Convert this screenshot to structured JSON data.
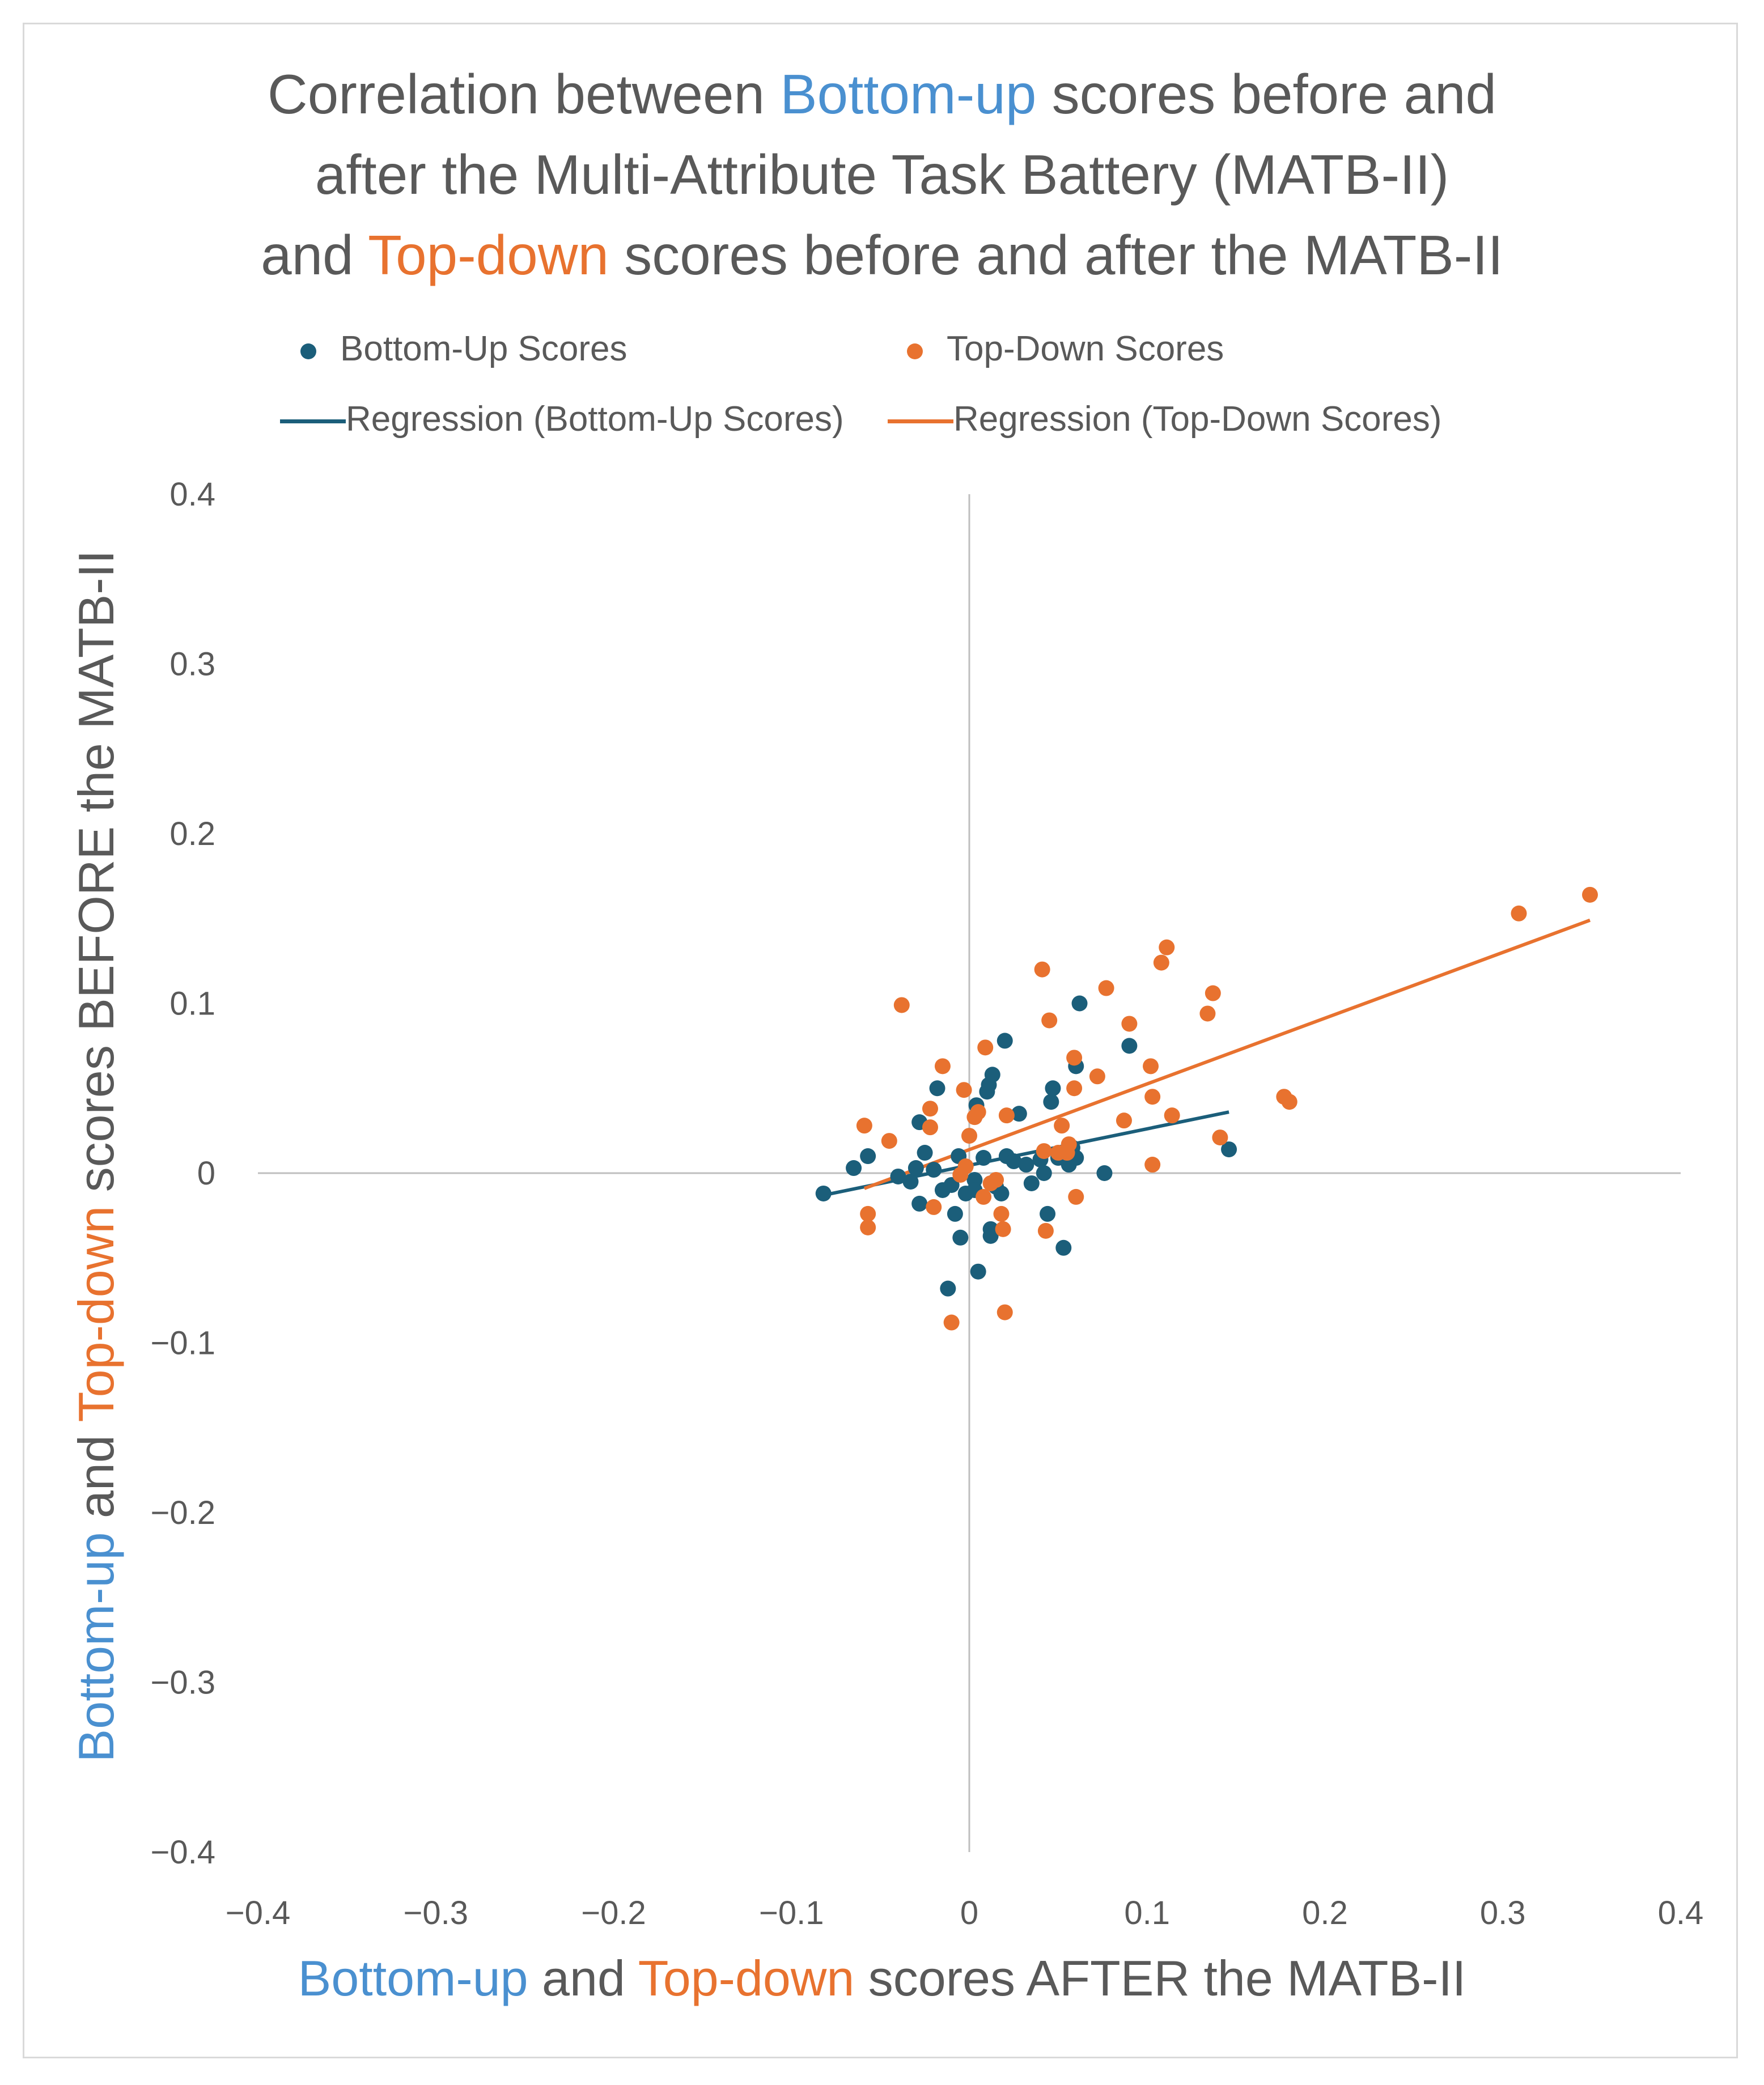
{
  "chart_data": {
    "type": "scatter",
    "title": {
      "line1": {
        "before": "Correlation between ",
        "highlight": "Bottom-up",
        "after": " scores before and"
      },
      "line2": "after the Multi-Attribute Task Battery (MATB-II)",
      "line3": {
        "before": "and ",
        "highlight": "Top-down",
        "after": " scores before and after the MATB-II"
      }
    },
    "xlabel": {
      "part1": "Bottom-up",
      "part2": " and ",
      "part3": "Top-down",
      "part4": " scores AFTER the MATB-II"
    },
    "ylabel": {
      "part1": "Bottom-up",
      "part2": " and ",
      "part3": "Top-down",
      "part4": " scores BEFORE the MATB-II"
    },
    "xlim": [
      -0.4,
      0.4
    ],
    "ylim": [
      -0.4,
      0.4
    ],
    "x_ticks": [
      "−0.4",
      "−0.3",
      "−0.2",
      "−0.1",
      "0",
      "0.1",
      "0.2",
      "0.3",
      "0.4"
    ],
    "y_ticks": [
      "0.4",
      "0.3",
      "0.2",
      "0.1",
      "0",
      "−0.1",
      "−0.2",
      "−0.3",
      "−0.4"
    ],
    "x_tick_values": [
      -0.4,
      -0.3,
      -0.2,
      -0.1,
      0,
      0.1,
      0.2,
      0.3,
      0.4
    ],
    "y_tick_values": [
      0.4,
      0.3,
      0.2,
      0.1,
      0,
      -0.1,
      -0.2,
      -0.3,
      -0.4
    ],
    "legend": {
      "bottom_up_scores": "Bottom-Up Scores",
      "top_down_scores": "Top-Down Scores",
      "regression_bottom_up": "Regression (Bottom-Up Scores)",
      "regression_top_down": "Regression (Top-Down Scores)"
    },
    "colors": {
      "bottom_up": "#1b5e7a",
      "top_down": "#e8722f",
      "axis": "#bfbfbf",
      "text": "#595959",
      "title_blue": "#4a90d0"
    },
    "series": [
      {
        "name": "Bottom-Up Scores",
        "points": [
          [
            -0.082,
            -0.012
          ],
          [
            -0.065,
            0.003
          ],
          [
            -0.057,
            0.01
          ],
          [
            -0.04,
            -0.002
          ],
          [
            -0.033,
            -0.005
          ],
          [
            -0.03,
            0.003
          ],
          [
            -0.028,
            0.03
          ],
          [
            -0.028,
            -0.018
          ],
          [
            -0.025,
            0.012
          ],
          [
            -0.02,
            0.002
          ],
          [
            -0.018,
            0.05
          ],
          [
            -0.015,
            -0.01
          ],
          [
            -0.012,
            -0.068
          ],
          [
            -0.01,
            -0.007
          ],
          [
            -0.008,
            -0.024
          ],
          [
            -0.006,
            0.01
          ],
          [
            -0.005,
            -0.038
          ],
          [
            -0.002,
            -0.012
          ],
          [
            0.003,
            -0.004
          ],
          [
            0.003,
            -0.01
          ],
          [
            0.004,
            0.04
          ],
          [
            0.005,
            -0.058
          ],
          [
            0.008,
            0.009
          ],
          [
            0.01,
            0.048
          ],
          [
            0.011,
            0.052
          ],
          [
            0.012,
            -0.033
          ],
          [
            0.012,
            -0.037
          ],
          [
            0.013,
            0.058
          ],
          [
            0.015,
            -0.008
          ],
          [
            0.018,
            -0.012
          ],
          [
            0.02,
            0.078
          ],
          [
            0.021,
            0.01
          ],
          [
            0.025,
            0.007
          ],
          [
            0.028,
            0.035
          ],
          [
            0.032,
            0.005
          ],
          [
            0.035,
            -0.006
          ],
          [
            0.04,
            0.008
          ],
          [
            0.042,
            0.0
          ],
          [
            0.044,
            -0.024
          ],
          [
            0.046,
            0.042
          ],
          [
            0.047,
            0.05
          ],
          [
            0.05,
            0.009
          ],
          [
            0.053,
            -0.044
          ],
          [
            0.056,
            0.005
          ],
          [
            0.058,
            0.015
          ],
          [
            0.06,
            0.063
          ],
          [
            0.062,
            0.1
          ],
          [
            0.06,
            0.009
          ],
          [
            0.076,
            0.0
          ],
          [
            0.09,
            0.075
          ],
          [
            0.146,
            0.014
          ]
        ]
      },
      {
        "name": "Top-Down Scores",
        "points": [
          [
            -0.059,
            0.028
          ],
          [
            -0.057,
            -0.032
          ],
          [
            -0.057,
            -0.024
          ],
          [
            -0.045,
            0.019
          ],
          [
            -0.038,
            0.099
          ],
          [
            -0.022,
            0.038
          ],
          [
            -0.022,
            0.027
          ],
          [
            -0.02,
            -0.02
          ],
          [
            -0.015,
            0.063
          ],
          [
            -0.01,
            -0.088
          ],
          [
            -0.005,
            -0.001
          ],
          [
            -0.003,
            0.049
          ],
          [
            -0.002,
            0.004
          ],
          [
            0.0,
            0.022
          ],
          [
            0.003,
            0.033
          ],
          [
            0.005,
            0.036
          ],
          [
            0.008,
            -0.014
          ],
          [
            0.009,
            0.074
          ],
          [
            0.012,
            -0.006
          ],
          [
            0.015,
            -0.004
          ],
          [
            0.018,
            -0.024
          ],
          [
            0.019,
            -0.033
          ],
          [
            0.02,
            -0.082
          ],
          [
            0.021,
            0.034
          ],
          [
            0.041,
            0.12
          ],
          [
            0.042,
            0.013
          ],
          [
            0.043,
            -0.034
          ],
          [
            0.045,
            0.09
          ],
          [
            0.05,
            0.012
          ],
          [
            0.052,
            0.028
          ],
          [
            0.055,
            0.012
          ],
          [
            0.056,
            0.017
          ],
          [
            0.059,
            0.068
          ],
          [
            0.059,
            0.05
          ],
          [
            0.06,
            -0.014
          ],
          [
            0.072,
            0.057
          ],
          [
            0.077,
            0.109
          ],
          [
            0.087,
            0.031
          ],
          [
            0.09,
            0.088
          ],
          [
            0.102,
            0.063
          ],
          [
            0.103,
            0.045
          ],
          [
            0.103,
            0.005
          ],
          [
            0.108,
            0.124
          ],
          [
            0.111,
            0.133
          ],
          [
            0.114,
            0.034
          ],
          [
            0.134,
            0.094
          ],
          [
            0.137,
            0.106
          ],
          [
            0.141,
            0.021
          ],
          [
            0.177,
            0.045
          ],
          [
            0.18,
            0.042
          ],
          [
            0.309,
            0.153
          ],
          [
            0.349,
            0.164
          ]
        ]
      }
    ],
    "regression": [
      {
        "name": "Regression (Bottom-Up Scores)",
        "x": [
          -0.082,
          0.146
        ],
        "y": [
          -0.013,
          0.036
        ]
      },
      {
        "name": "Regression (Top-Down Scores)",
        "x": [
          -0.059,
          0.349
        ],
        "y": [
          -0.009,
          0.149
        ]
      }
    ]
  }
}
